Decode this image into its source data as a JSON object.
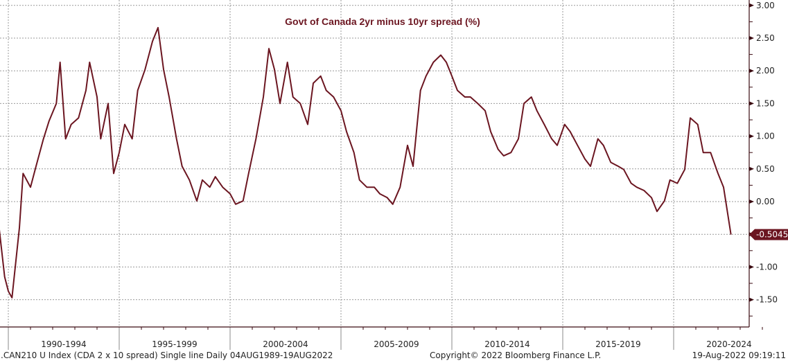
{
  "chart_data": {
    "type": "line",
    "title": "Govt of Canada 2yr minus 10yr spread (%)",
    "xlabel": "",
    "ylabel": "",
    "ylim": [
      -1.85,
      3.0
    ],
    "y_ticks": [
      "3.00",
      "2.50",
      "2.00",
      "1.50",
      "1.00",
      "0.50",
      "0.00",
      "-0.50",
      "-1.00",
      "-1.50"
    ],
    "x_tick_labels": [
      "1990-1994",
      "1995-1999",
      "2000-2004",
      "2005-2009",
      "2010-2014",
      "2015-2019",
      "2020-2024"
    ],
    "grid": true,
    "line_color": "#6b1520",
    "last_value_label": "-0.5045",
    "series": [
      {
        "points": [
          [
            "1989-08",
            -0.4
          ],
          [
            "1989-11",
            -1.15
          ],
          [
            "1990-01",
            -1.37
          ],
          [
            "1990-03",
            -1.47
          ],
          [
            "1990-07",
            -0.4
          ],
          [
            "1990-09",
            0.43
          ],
          [
            "1991-01",
            0.22
          ],
          [
            "1991-04",
            0.54
          ],
          [
            "1991-08",
            0.96
          ],
          [
            "1991-11",
            1.23
          ],
          [
            "1992-03",
            1.5
          ],
          [
            "1992-05",
            2.13
          ],
          [
            "1992-08",
            0.96
          ],
          [
            "1992-11",
            1.18
          ],
          [
            "1993-03",
            1.28
          ],
          [
            "1993-07",
            1.7
          ],
          [
            "1993-09",
            2.13
          ],
          [
            "1994-01",
            1.6
          ],
          [
            "1994-03",
            0.96
          ],
          [
            "1994-07",
            1.5
          ],
          [
            "1994-10",
            0.43
          ],
          [
            "1995-01",
            0.75
          ],
          [
            "1995-04",
            1.18
          ],
          [
            "1995-08",
            0.96
          ],
          [
            "1995-11",
            1.7
          ],
          [
            "1996-03",
            2.02
          ],
          [
            "1996-07",
            2.45
          ],
          [
            "1996-10",
            2.66
          ],
          [
            "1997-01",
            2.02
          ],
          [
            "1997-04",
            1.6
          ],
          [
            "1997-08",
            0.96
          ],
          [
            "1997-11",
            0.54
          ],
          [
            "1998-03",
            0.33
          ],
          [
            "1998-07",
            0.01
          ],
          [
            "1998-10",
            0.33
          ],
          [
            "1999-02",
            0.22
          ],
          [
            "1999-05",
            0.38
          ],
          [
            "1999-09",
            0.22
          ],
          [
            "2000-01",
            0.12
          ],
          [
            "2000-04",
            -0.04
          ],
          [
            "2000-08",
            0.01
          ],
          [
            "2000-11",
            0.43
          ],
          [
            "2001-03",
            0.96
          ],
          [
            "2001-07",
            1.6
          ],
          [
            "2001-10",
            2.34
          ],
          [
            "2002-01",
            2.02
          ],
          [
            "2002-04",
            1.5
          ],
          [
            "2002-08",
            2.13
          ],
          [
            "2002-11",
            1.6
          ],
          [
            "2003-03",
            1.5
          ],
          [
            "2003-07",
            1.18
          ],
          [
            "2003-10",
            1.81
          ],
          [
            "2004-02",
            1.92
          ],
          [
            "2004-05",
            1.7
          ],
          [
            "2004-09",
            1.6
          ],
          [
            "2005-01",
            1.39
          ],
          [
            "2005-04",
            1.07
          ],
          [
            "2005-08",
            0.75
          ],
          [
            "2005-11",
            0.33
          ],
          [
            "2006-03",
            0.22
          ],
          [
            "2006-07",
            0.22
          ],
          [
            "2006-10",
            0.12
          ],
          [
            "2007-02",
            0.06
          ],
          [
            "2007-05",
            -0.04
          ],
          [
            "2007-09",
            0.22
          ],
          [
            "2008-01",
            0.86
          ],
          [
            "2008-04",
            0.54
          ],
          [
            "2008-08",
            1.7
          ],
          [
            "2008-11",
            1.92
          ],
          [
            "2009-03",
            2.13
          ],
          [
            "2009-07",
            2.24
          ],
          [
            "2009-10",
            2.13
          ],
          [
            "2010-01",
            1.92
          ],
          [
            "2010-04",
            1.7
          ],
          [
            "2010-08",
            1.6
          ],
          [
            "2010-11",
            1.6
          ],
          [
            "2011-03",
            1.5
          ],
          [
            "2011-07",
            1.39
          ],
          [
            "2011-10",
            1.07
          ],
          [
            "2012-02",
            0.8
          ],
          [
            "2012-05",
            0.7
          ],
          [
            "2012-09",
            0.75
          ],
          [
            "2013-01",
            0.96
          ],
          [
            "2013-04",
            1.5
          ],
          [
            "2013-08",
            1.6
          ],
          [
            "2013-11",
            1.39
          ],
          [
            "2014-03",
            1.18
          ],
          [
            "2014-07",
            0.96
          ],
          [
            "2014-10",
            0.86
          ],
          [
            "2015-02",
            1.18
          ],
          [
            "2015-05",
            1.07
          ],
          [
            "2015-09",
            0.86
          ],
          [
            "2016-01",
            0.65
          ],
          [
            "2016-04",
            0.54
          ],
          [
            "2016-08",
            0.96
          ],
          [
            "2016-11",
            0.86
          ],
          [
            "2017-03",
            0.6
          ],
          [
            "2017-07",
            0.54
          ],
          [
            "2017-10",
            0.49
          ],
          [
            "2018-02",
            0.28
          ],
          [
            "2018-05",
            0.22
          ],
          [
            "2018-09",
            0.17
          ],
          [
            "2019-01",
            0.06
          ],
          [
            "2019-04",
            -0.15
          ],
          [
            "2019-08",
            0.01
          ],
          [
            "2019-11",
            0.33
          ],
          [
            "2020-03",
            0.28
          ],
          [
            "2020-07",
            0.49
          ],
          [
            "2020-10",
            1.28
          ],
          [
            "2021-02",
            1.18
          ],
          [
            "2021-05",
            0.75
          ],
          [
            "2021-09",
            0.75
          ],
          [
            "2022-01",
            0.43
          ],
          [
            "2022-04",
            0.22
          ],
          [
            "2022-08",
            -0.5045
          ]
        ]
      }
    ]
  },
  "footer": {
    "source": ".CAN210 U Index (CDA 2 x 10 spread) Single line  Daily 04AUG1989-19AUG2022",
    "copyright": "Copyright© 2022 Bloomberg Finance L.P.",
    "timestamp": "19-Aug-2022 09:19:11"
  }
}
